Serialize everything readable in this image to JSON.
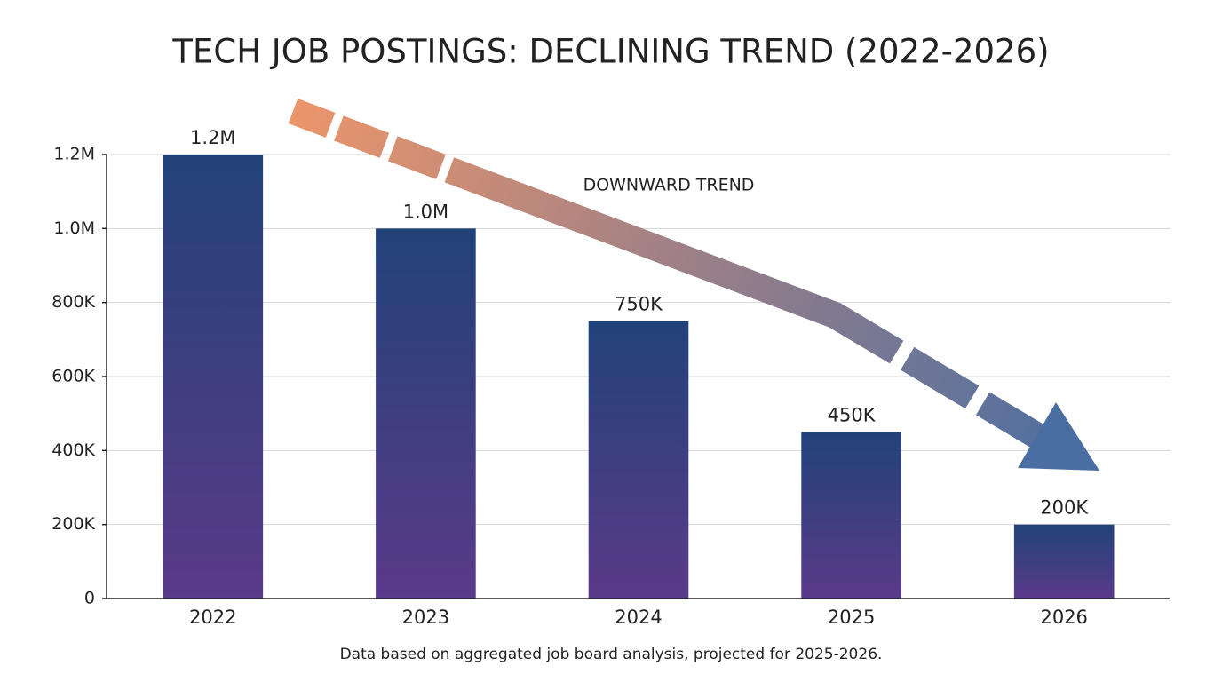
{
  "chart_data": {
    "type": "bar",
    "title": "TECH JOB POSTINGS: DECLINING TREND (2022-2026)",
    "annotation": "DOWNWARD TREND",
    "footnote": "Data based on aggregated job board analysis, projected for 2025-2026.",
    "categories": [
      "2022",
      "2023",
      "2024",
      "2025",
      "2026"
    ],
    "values": [
      1200000,
      1000000,
      750000,
      450000,
      200000
    ],
    "value_labels": [
      "1.2M",
      "1.0M",
      "750K",
      "450K",
      "200K"
    ],
    "color": "#22427a",
    "ylim": [
      0,
      1200000
    ],
    "yticks": [
      0,
      {
        "value": 200000,
        "label": "200K"
      },
      {
        "value": 400000,
        "label": "400K"
      },
      {
        "value": 600000,
        "label": "600K"
      },
      {
        "value": 800000,
        "label": "800K"
      },
      {
        "value": 1000000,
        "label": "1.0M"
      },
      {
        "value": 1200000,
        "label": "1.2M"
      }
    ],
    "grid": true
  }
}
